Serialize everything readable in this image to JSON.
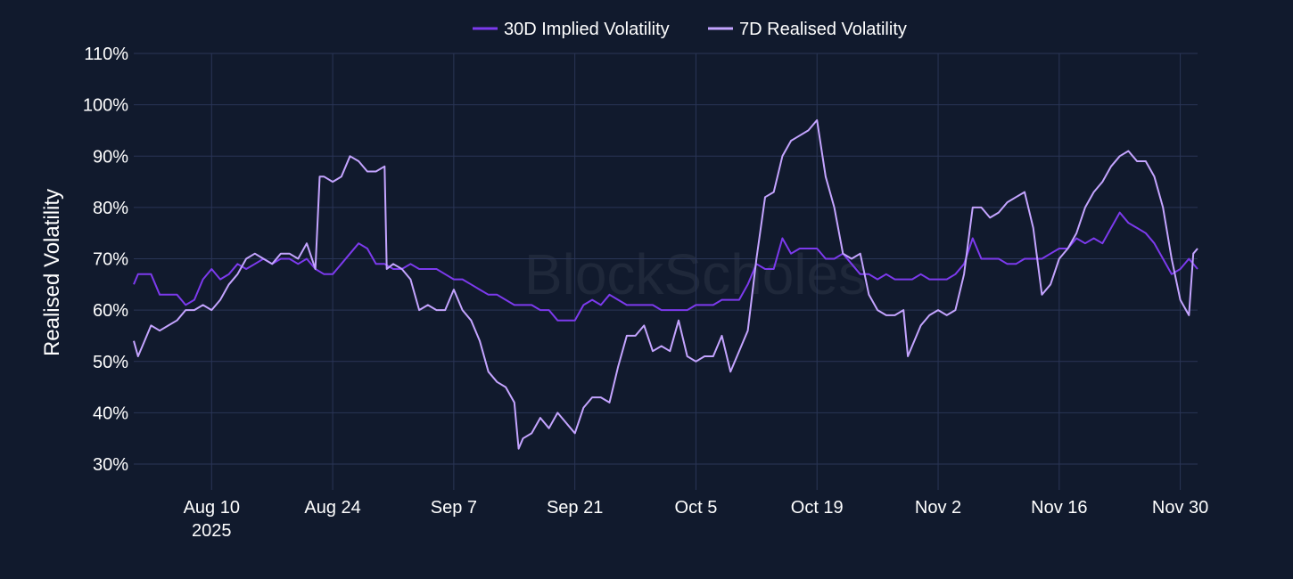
{
  "colors": {
    "background": "#111a2d",
    "grid": "#2a3556",
    "implied": "#7c3aed",
    "realised": "#c4a4ff"
  },
  "watermark": "BlockScholes",
  "chart_data": {
    "type": "line",
    "title": "",
    "xlabel": "",
    "ylabel": "Realised Volatility",
    "ylim": [
      25,
      110
    ],
    "yticks": [
      30,
      40,
      50,
      60,
      70,
      80,
      90,
      100,
      110
    ],
    "ytick_labels": [
      "30%",
      "40%",
      "50%",
      "60%",
      "70%",
      "80%",
      "90%",
      "100%",
      "110%"
    ],
    "xlim": [
      "2025-08-01",
      "2025-12-02"
    ],
    "xticks": [
      {
        "date": "2025-08-10",
        "label": "Aug 10",
        "sublabel": "2025"
      },
      {
        "date": "2025-08-24",
        "label": "Aug 24"
      },
      {
        "date": "2025-09-07",
        "label": "Sep 7"
      },
      {
        "date": "2025-09-21",
        "label": "Sep 21"
      },
      {
        "date": "2025-10-05",
        "label": "Oct 5"
      },
      {
        "date": "2025-10-19",
        "label": "Oct 19"
      },
      {
        "date": "2025-11-02",
        "label": "Nov 2"
      },
      {
        "date": "2025-11-16",
        "label": "Nov 16"
      },
      {
        "date": "2025-11-30",
        "label": "Nov 30"
      }
    ],
    "legend": "top-center",
    "grid": true,
    "series": [
      {
        "name": "30D Implied Volatility",
        "color": "#7c3aed",
        "points": [
          [
            "2025-08-01",
            65
          ],
          [
            "2025-08-01T12",
            67
          ],
          [
            "2025-08-02",
            67
          ],
          [
            "2025-08-03",
            67
          ],
          [
            "2025-08-04",
            63
          ],
          [
            "2025-08-05",
            63
          ],
          [
            "2025-08-06",
            63
          ],
          [
            "2025-08-07",
            61
          ],
          [
            "2025-08-08",
            62
          ],
          [
            "2025-08-09",
            66
          ],
          [
            "2025-08-10",
            68
          ],
          [
            "2025-08-11",
            66
          ],
          [
            "2025-08-12",
            67
          ],
          [
            "2025-08-13",
            69
          ],
          [
            "2025-08-14",
            68
          ],
          [
            "2025-08-15",
            69
          ],
          [
            "2025-08-16",
            70
          ],
          [
            "2025-08-17",
            69
          ],
          [
            "2025-08-18",
            70
          ],
          [
            "2025-08-19",
            70
          ],
          [
            "2025-08-20",
            69
          ],
          [
            "2025-08-21",
            70
          ],
          [
            "2025-08-22",
            68
          ],
          [
            "2025-08-23",
            67
          ],
          [
            "2025-08-24",
            67
          ],
          [
            "2025-08-25",
            69
          ],
          [
            "2025-08-26",
            71
          ],
          [
            "2025-08-27",
            73
          ],
          [
            "2025-08-28",
            72
          ],
          [
            "2025-08-29",
            69
          ],
          [
            "2025-08-30",
            69
          ],
          [
            "2025-08-31",
            68
          ],
          [
            "2025-09-01",
            68
          ],
          [
            "2025-09-02",
            69
          ],
          [
            "2025-09-03",
            68
          ],
          [
            "2025-09-04",
            68
          ],
          [
            "2025-09-05",
            68
          ],
          [
            "2025-09-06",
            67
          ],
          [
            "2025-09-07",
            66
          ],
          [
            "2025-09-08",
            66
          ],
          [
            "2025-09-09",
            65
          ],
          [
            "2025-09-10",
            64
          ],
          [
            "2025-09-11",
            63
          ],
          [
            "2025-09-12",
            63
          ],
          [
            "2025-09-13",
            62
          ],
          [
            "2025-09-14",
            61
          ],
          [
            "2025-09-15",
            61
          ],
          [
            "2025-09-16",
            61
          ],
          [
            "2025-09-17",
            60
          ],
          [
            "2025-09-18",
            60
          ],
          [
            "2025-09-19",
            58
          ],
          [
            "2025-09-20",
            58
          ],
          [
            "2025-09-21",
            58
          ],
          [
            "2025-09-22",
            61
          ],
          [
            "2025-09-23",
            62
          ],
          [
            "2025-09-24",
            61
          ],
          [
            "2025-09-25",
            63
          ],
          [
            "2025-09-26",
            62
          ],
          [
            "2025-09-27",
            61
          ],
          [
            "2025-09-28",
            61
          ],
          [
            "2025-09-29",
            61
          ],
          [
            "2025-09-30",
            61
          ],
          [
            "2025-10-01",
            60
          ],
          [
            "2025-10-02",
            60
          ],
          [
            "2025-10-03",
            60
          ],
          [
            "2025-10-04",
            60
          ],
          [
            "2025-10-05",
            61
          ],
          [
            "2025-10-06",
            61
          ],
          [
            "2025-10-07",
            61
          ],
          [
            "2025-10-08",
            62
          ],
          [
            "2025-10-09",
            62
          ],
          [
            "2025-10-10",
            62
          ],
          [
            "2025-10-11",
            65
          ],
          [
            "2025-10-12",
            69
          ],
          [
            "2025-10-13",
            68
          ],
          [
            "2025-10-14",
            68
          ],
          [
            "2025-10-15",
            74
          ],
          [
            "2025-10-16",
            71
          ],
          [
            "2025-10-17",
            72
          ],
          [
            "2025-10-18",
            72
          ],
          [
            "2025-10-19",
            72
          ],
          [
            "2025-10-20",
            70
          ],
          [
            "2025-10-21",
            70
          ],
          [
            "2025-10-22",
            71
          ],
          [
            "2025-10-23",
            69
          ],
          [
            "2025-10-24",
            67
          ],
          [
            "2025-10-25",
            67
          ],
          [
            "2025-10-26",
            66
          ],
          [
            "2025-10-27",
            67
          ],
          [
            "2025-10-28",
            66
          ],
          [
            "2025-10-29",
            66
          ],
          [
            "2025-10-30",
            66
          ],
          [
            "2025-10-31",
            67
          ],
          [
            "2025-11-01",
            66
          ],
          [
            "2025-11-02",
            66
          ],
          [
            "2025-11-03",
            66
          ],
          [
            "2025-11-04",
            67
          ],
          [
            "2025-11-05",
            69
          ],
          [
            "2025-11-06",
            74
          ],
          [
            "2025-11-07",
            70
          ],
          [
            "2025-11-08",
            70
          ],
          [
            "2025-11-09",
            70
          ],
          [
            "2025-11-10",
            69
          ],
          [
            "2025-11-11",
            69
          ],
          [
            "2025-11-12",
            70
          ],
          [
            "2025-11-13",
            70
          ],
          [
            "2025-11-14",
            70
          ],
          [
            "2025-11-15",
            71
          ],
          [
            "2025-11-16",
            72
          ],
          [
            "2025-11-17",
            72
          ],
          [
            "2025-11-18",
            74
          ],
          [
            "2025-11-19",
            73
          ],
          [
            "2025-11-20",
            74
          ],
          [
            "2025-11-21",
            73
          ],
          [
            "2025-11-22",
            76
          ],
          [
            "2025-11-23",
            79
          ],
          [
            "2025-11-24",
            77
          ],
          [
            "2025-11-25",
            76
          ],
          [
            "2025-11-26",
            75
          ],
          [
            "2025-11-27",
            73
          ],
          [
            "2025-11-28",
            70
          ],
          [
            "2025-11-29",
            67
          ],
          [
            "2025-11-30",
            68
          ],
          [
            "2025-12-01",
            70
          ],
          [
            "2025-12-02",
            68
          ]
        ]
      },
      {
        "name": "7D Realised Volatility",
        "color": "#c4a4ff",
        "points": [
          [
            "2025-08-01",
            54
          ],
          [
            "2025-08-01T12",
            51
          ],
          [
            "2025-08-02",
            53
          ],
          [
            "2025-08-03",
            57
          ],
          [
            "2025-08-04",
            56
          ],
          [
            "2025-08-05",
            57
          ],
          [
            "2025-08-06",
            58
          ],
          [
            "2025-08-07",
            60
          ],
          [
            "2025-08-08",
            60
          ],
          [
            "2025-08-09",
            61
          ],
          [
            "2025-08-10",
            60
          ],
          [
            "2025-08-11",
            62
          ],
          [
            "2025-08-12",
            65
          ],
          [
            "2025-08-13",
            67
          ],
          [
            "2025-08-14",
            70
          ],
          [
            "2025-08-15",
            71
          ],
          [
            "2025-08-16",
            70
          ],
          [
            "2025-08-17",
            69
          ],
          [
            "2025-08-18",
            71
          ],
          [
            "2025-08-19",
            71
          ],
          [
            "2025-08-20",
            70
          ],
          [
            "2025-08-21",
            73
          ],
          [
            "2025-08-22",
            68
          ],
          [
            "2025-08-22T12",
            86
          ],
          [
            "2025-08-23",
            86
          ],
          [
            "2025-08-24",
            85
          ],
          [
            "2025-08-25",
            86
          ],
          [
            "2025-08-26",
            90
          ],
          [
            "2025-08-27",
            89
          ],
          [
            "2025-08-28",
            87
          ],
          [
            "2025-08-29",
            87
          ],
          [
            "2025-08-30",
            88
          ],
          [
            "2025-08-30T06",
            68
          ],
          [
            "2025-08-31",
            69
          ],
          [
            "2025-09-01",
            68
          ],
          [
            "2025-09-02",
            66
          ],
          [
            "2025-09-03",
            60
          ],
          [
            "2025-09-04",
            61
          ],
          [
            "2025-09-05",
            60
          ],
          [
            "2025-09-06",
            60
          ],
          [
            "2025-09-07",
            64
          ],
          [
            "2025-09-08",
            60
          ],
          [
            "2025-09-09",
            58
          ],
          [
            "2025-09-10",
            54
          ],
          [
            "2025-09-11",
            48
          ],
          [
            "2025-09-12",
            46
          ],
          [
            "2025-09-13",
            45
          ],
          [
            "2025-09-14",
            42
          ],
          [
            "2025-09-14T12",
            33
          ],
          [
            "2025-09-15",
            35
          ],
          [
            "2025-09-16",
            36
          ],
          [
            "2025-09-17",
            39
          ],
          [
            "2025-09-18",
            37
          ],
          [
            "2025-09-19",
            40
          ],
          [
            "2025-09-20",
            38
          ],
          [
            "2025-09-21",
            36
          ],
          [
            "2025-09-22",
            41
          ],
          [
            "2025-09-23",
            43
          ],
          [
            "2025-09-24",
            43
          ],
          [
            "2025-09-25",
            42
          ],
          [
            "2025-09-26",
            49
          ],
          [
            "2025-09-27",
            55
          ],
          [
            "2025-09-28",
            55
          ],
          [
            "2025-09-29",
            57
          ],
          [
            "2025-09-30",
            52
          ],
          [
            "2025-10-01",
            53
          ],
          [
            "2025-10-02",
            52
          ],
          [
            "2025-10-03",
            58
          ],
          [
            "2025-10-04",
            51
          ],
          [
            "2025-10-05",
            50
          ],
          [
            "2025-10-06",
            51
          ],
          [
            "2025-10-07",
            51
          ],
          [
            "2025-10-08",
            55
          ],
          [
            "2025-10-09",
            48
          ],
          [
            "2025-10-10",
            52
          ],
          [
            "2025-10-11",
            56
          ],
          [
            "2025-10-12",
            70
          ],
          [
            "2025-10-13",
            82
          ],
          [
            "2025-10-14",
            83
          ],
          [
            "2025-10-15",
            90
          ],
          [
            "2025-10-16",
            93
          ],
          [
            "2025-10-17",
            94
          ],
          [
            "2025-10-18",
            95
          ],
          [
            "2025-10-19",
            97
          ],
          [
            "2025-10-20",
            86
          ],
          [
            "2025-10-21",
            80
          ],
          [
            "2025-10-22",
            71
          ],
          [
            "2025-10-23",
            70
          ],
          [
            "2025-10-24",
            71
          ],
          [
            "2025-10-25",
            63
          ],
          [
            "2025-10-26",
            60
          ],
          [
            "2025-10-27",
            59
          ],
          [
            "2025-10-28",
            59
          ],
          [
            "2025-10-29",
            60
          ],
          [
            "2025-10-29T12",
            51
          ],
          [
            "2025-10-30",
            53
          ],
          [
            "2025-10-31",
            57
          ],
          [
            "2025-11-01",
            59
          ],
          [
            "2025-11-02",
            60
          ],
          [
            "2025-11-03",
            59
          ],
          [
            "2025-11-04",
            60
          ],
          [
            "2025-11-05",
            67
          ],
          [
            "2025-11-06",
            80
          ],
          [
            "2025-11-07",
            80
          ],
          [
            "2025-11-08",
            78
          ],
          [
            "2025-11-09",
            79
          ],
          [
            "2025-11-10",
            81
          ],
          [
            "2025-11-11",
            82
          ],
          [
            "2025-11-12",
            83
          ],
          [
            "2025-11-13",
            76
          ],
          [
            "2025-11-14",
            63
          ],
          [
            "2025-11-15",
            65
          ],
          [
            "2025-11-16",
            70
          ],
          [
            "2025-11-17",
            72
          ],
          [
            "2025-11-18",
            75
          ],
          [
            "2025-11-19",
            80
          ],
          [
            "2025-11-20",
            83
          ],
          [
            "2025-11-21",
            85
          ],
          [
            "2025-11-22",
            88
          ],
          [
            "2025-11-23",
            90
          ],
          [
            "2025-11-24",
            91
          ],
          [
            "2025-11-25",
            89
          ],
          [
            "2025-11-26",
            89
          ],
          [
            "2025-11-27",
            86
          ],
          [
            "2025-11-28",
            80
          ],
          [
            "2025-11-29",
            70
          ],
          [
            "2025-11-30",
            62
          ],
          [
            "2025-12-01",
            59
          ],
          [
            "2025-12-01T12",
            71
          ],
          [
            "2025-12-02",
            72
          ]
        ]
      }
    ]
  }
}
